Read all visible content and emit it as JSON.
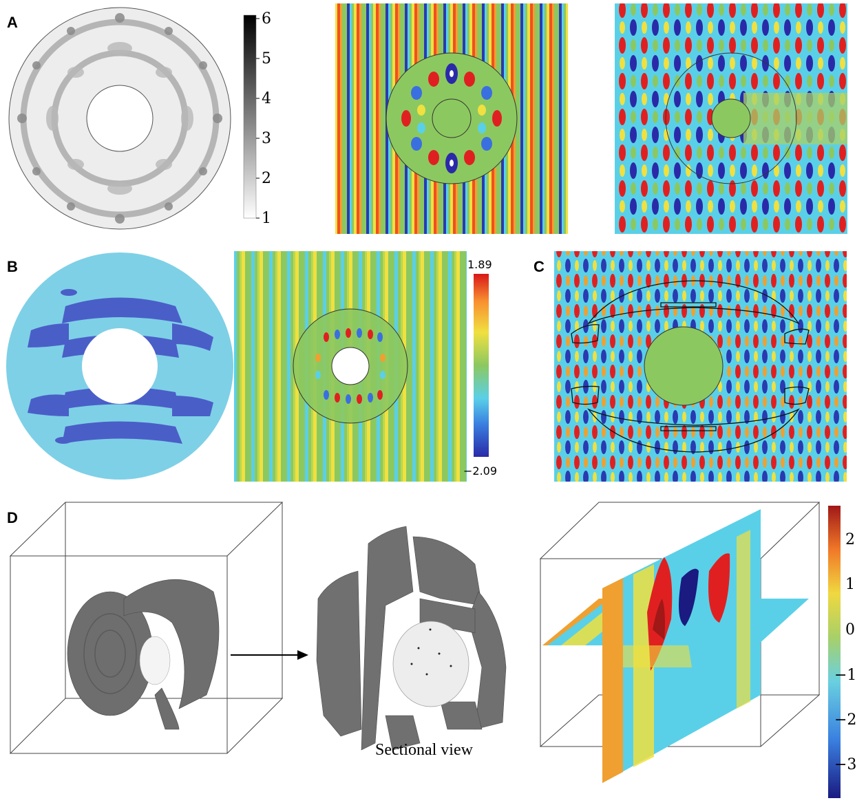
{
  "panels": {
    "a": "A",
    "b": "B",
    "c": "C",
    "d": "D"
  },
  "colorbar_gray": {
    "ticks": [
      "6",
      "5",
      "4",
      "3",
      "2",
      "1"
    ]
  },
  "colorbar_jet_b": {
    "max": "1.89",
    "min": "−2.09"
  },
  "colorbar_jet_d": {
    "ticks": [
      "2",
      "1",
      "0",
      "−1",
      "−2",
      "−3"
    ]
  },
  "caption": "Sectional view",
  "colors": {
    "dark_blue": "#2a2aa8",
    "blue": "#3a6fe0",
    "cyan": "#5ad0e8",
    "green": "#8cc860",
    "yellow": "#f0e040",
    "orange": "#f8a030",
    "red": "#e02020",
    "cloak_cyan": "#7ed0e6",
    "cloak_blue": "#4a5ec8",
    "voxel_gray": "#6e6e6e"
  }
}
